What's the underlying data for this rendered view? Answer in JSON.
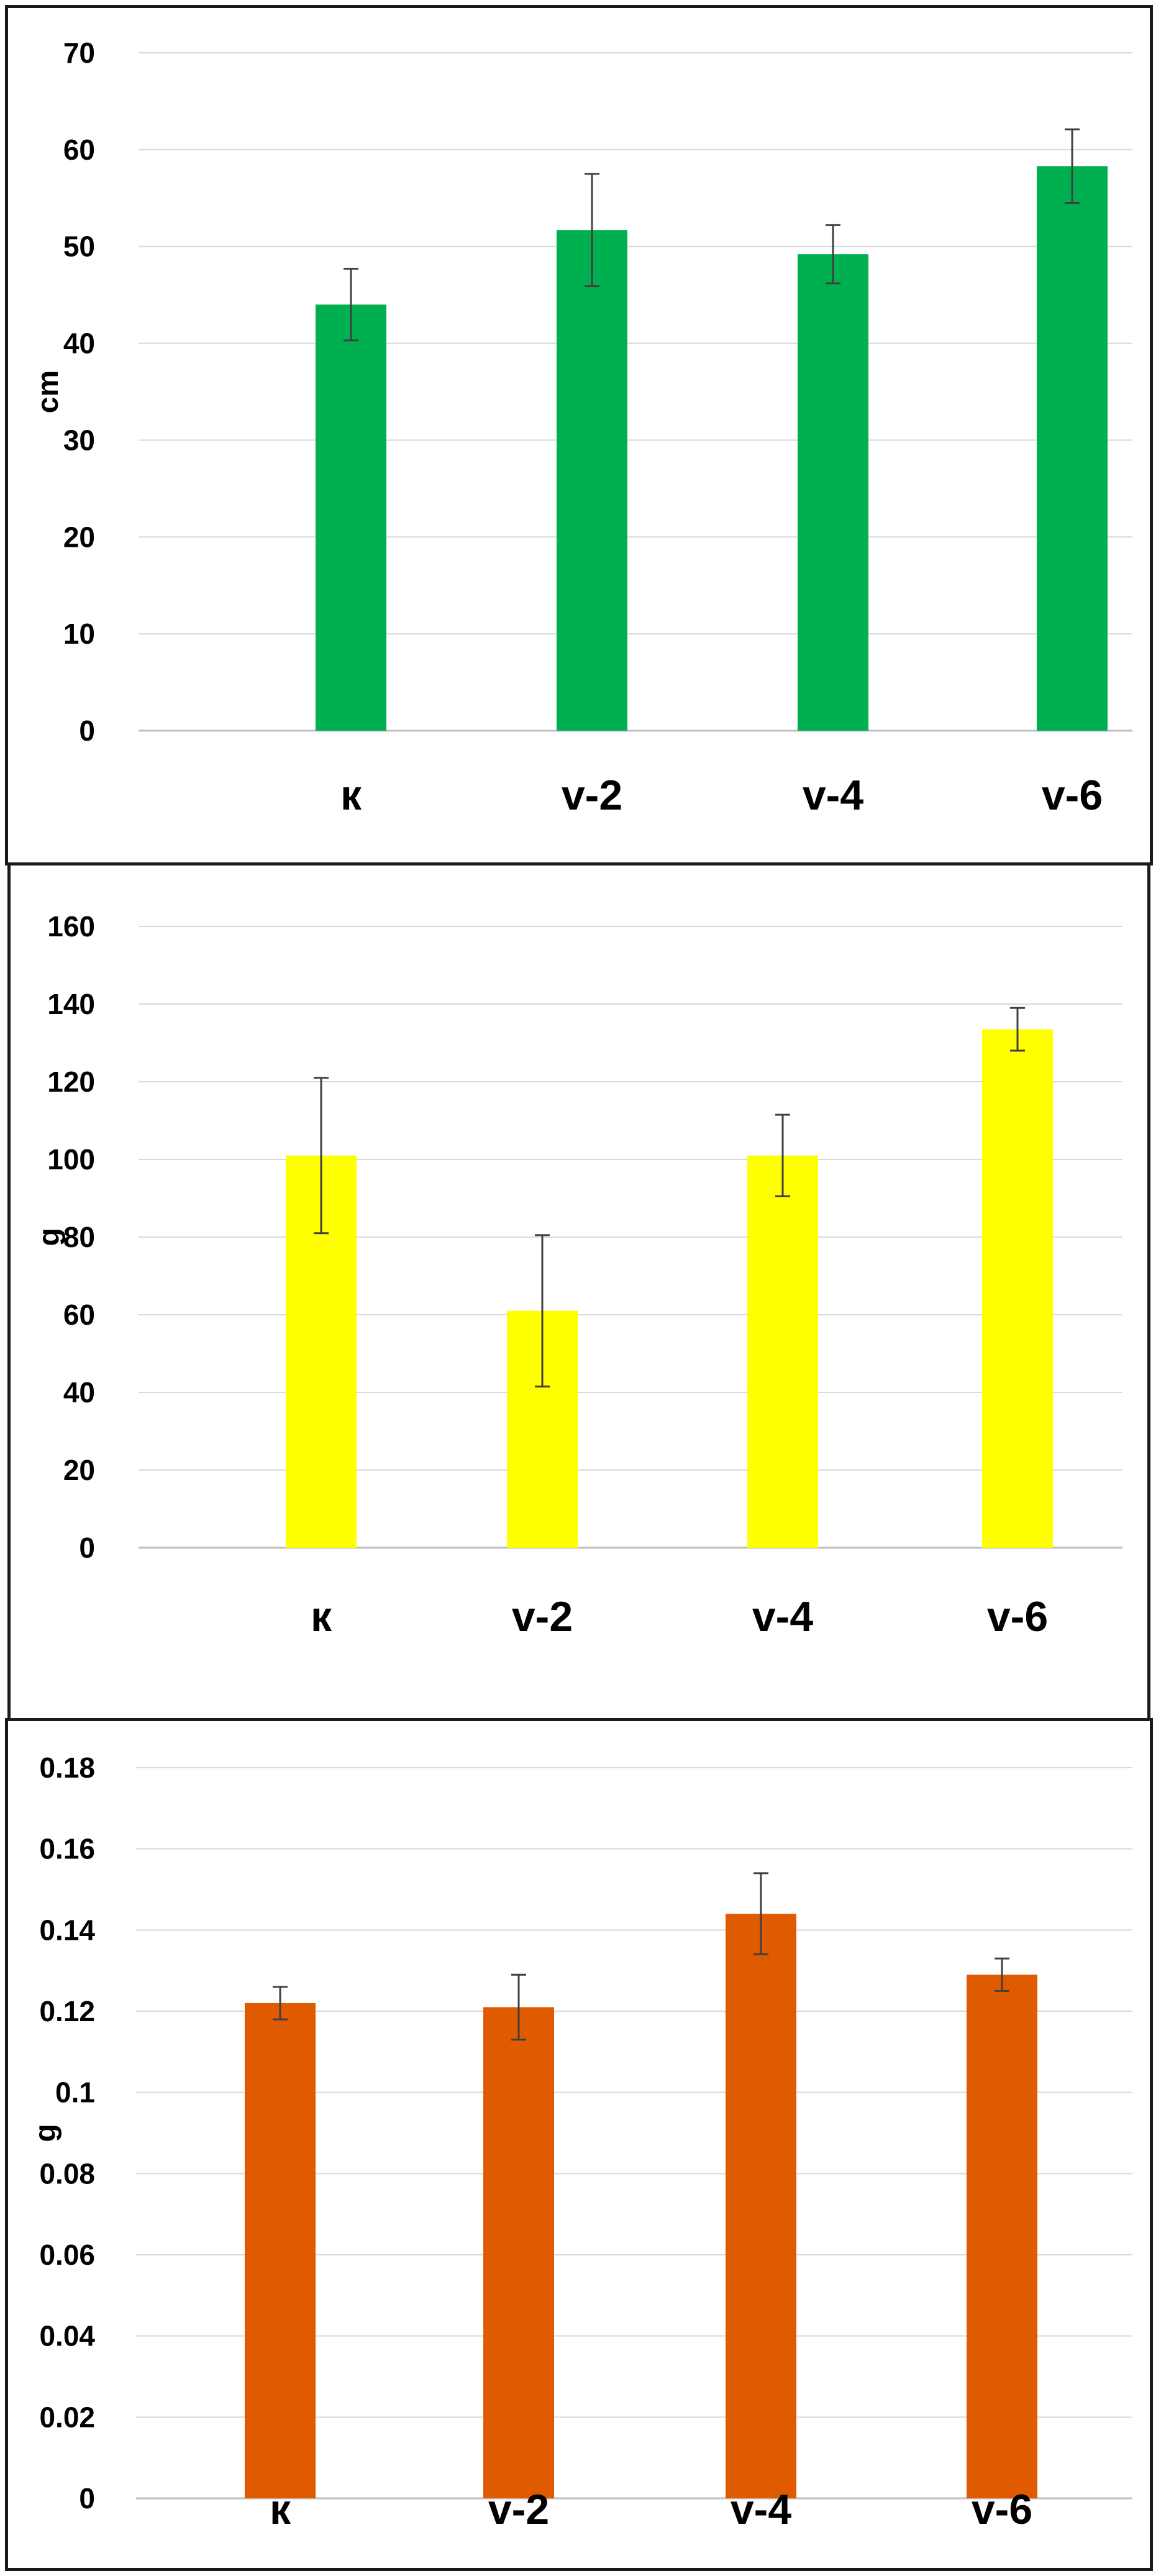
{
  "chart_data": [
    {
      "type": "bar",
      "categories": [
        "к",
        "v-2",
        "v-4",
        "v-6"
      ],
      "values": [
        44,
        51.7,
        49.2,
        58.3
      ],
      "error": [
        3.7,
        5.8,
        3.0,
        3.8
      ],
      "ylabel": "cm",
      "ylim": [
        0,
        70
      ],
      "yticks": [
        "0",
        "10",
        "20",
        "30",
        "40",
        "50",
        "60",
        "70"
      ],
      "color": "#00b050",
      "grid": true
    },
    {
      "type": "bar",
      "categories": [
        "к",
        "v-2",
        "v-4",
        "v-6"
      ],
      "values": [
        101,
        61,
        101,
        133.5
      ],
      "error": [
        20,
        19.5,
        10.5,
        5.5
      ],
      "ylabel": "g",
      "ylim": [
        0,
        160
      ],
      "yticks": [
        "0",
        "20",
        "40",
        "60",
        "80",
        "100",
        "120",
        "140",
        "160"
      ],
      "color": "#ffff00",
      "grid": true
    },
    {
      "type": "bar",
      "categories": [
        "к",
        "v-2",
        "v-4",
        "v-6"
      ],
      "values": [
        0.122,
        0.121,
        0.144,
        0.129
      ],
      "error": [
        0.004,
        0.008,
        0.01,
        0.004
      ],
      "ylabel": "g",
      "ylim": [
        0,
        0.18
      ],
      "yticks": [
        "0",
        "0.02",
        "0.04",
        "0.06",
        "0.08",
        "0.1",
        "0.12",
        "0.14",
        "0.16",
        "0.18"
      ],
      "color": "#e05a00",
      "grid": true
    }
  ]
}
